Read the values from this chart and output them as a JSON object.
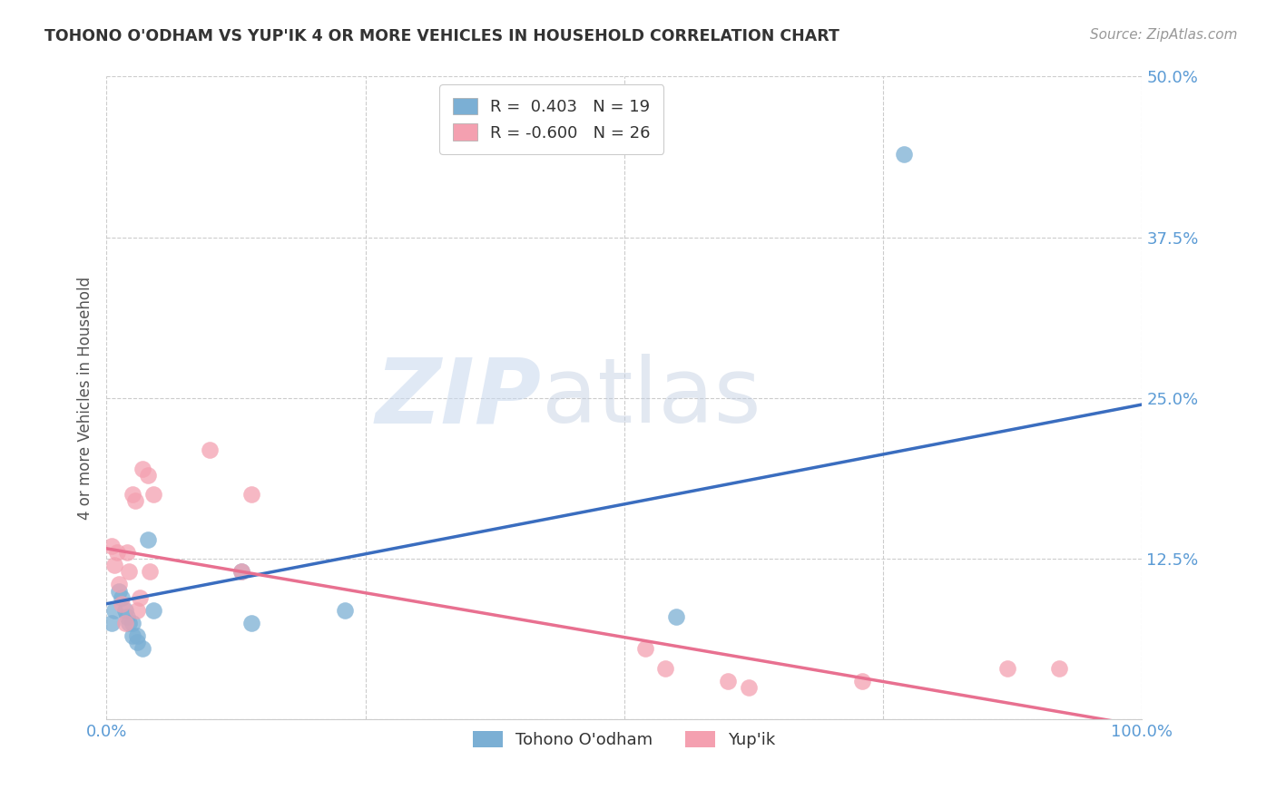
{
  "title": "TOHONO O'ODHAM VS YUP'IK 4 OR MORE VEHICLES IN HOUSEHOLD CORRELATION CHART",
  "source": "Source: ZipAtlas.com",
  "ylabel": "4 or more Vehicles in Household",
  "R1": 0.403,
  "N1": 19,
  "R2": -0.6,
  "N2": 26,
  "color1": "#7bafd4",
  "color2": "#f4a0b0",
  "line1_color": "#3a6dbf",
  "line2_color": "#e87090",
  "tohono_x": [
    0.005,
    0.008,
    0.012,
    0.015,
    0.018,
    0.02,
    0.022,
    0.025,
    0.025,
    0.03,
    0.03,
    0.035,
    0.04,
    0.045,
    0.13,
    0.14,
    0.23,
    0.55,
    0.77
  ],
  "tohono_y": [
    0.075,
    0.085,
    0.1,
    0.095,
    0.085,
    0.08,
    0.075,
    0.075,
    0.065,
    0.065,
    0.06,
    0.055,
    0.14,
    0.085,
    0.115,
    0.075,
    0.085,
    0.08,
    0.44
  ],
  "yupik_x": [
    0.005,
    0.008,
    0.01,
    0.012,
    0.015,
    0.018,
    0.02,
    0.022,
    0.025,
    0.028,
    0.03,
    0.032,
    0.035,
    0.04,
    0.042,
    0.045,
    0.1,
    0.13,
    0.14,
    0.52,
    0.54,
    0.6,
    0.62,
    0.73,
    0.87,
    0.92
  ],
  "yupik_y": [
    0.135,
    0.12,
    0.13,
    0.105,
    0.09,
    0.075,
    0.13,
    0.115,
    0.175,
    0.17,
    0.085,
    0.095,
    0.195,
    0.19,
    0.115,
    0.175,
    0.21,
    0.115,
    0.175,
    0.055,
    0.04,
    0.03,
    0.025,
    0.03,
    0.04,
    0.04
  ],
  "line1_x0": 0.0,
  "line1_y0": 0.09,
  "line1_x1": 1.0,
  "line1_y1": 0.245,
  "line2_x0": 0.0,
  "line2_y0": 0.133,
  "line2_x1": 1.0,
  "line2_y1": -0.005,
  "xlim": [
    0.0,
    1.0
  ],
  "ylim": [
    0.0,
    0.5
  ],
  "xticks": [
    0.0,
    0.25,
    0.5,
    0.75,
    1.0
  ],
  "xticklabels": [
    "0.0%",
    "",
    "",
    "",
    "100.0%"
  ],
  "yticks": [
    0.0,
    0.125,
    0.25,
    0.375,
    0.5
  ],
  "yticklabels": [
    "",
    "12.5%",
    "25.0%",
    "37.5%",
    "50.0%"
  ],
  "legend1_label": "Tohono O'odham",
  "legend2_label": "Yup'ik",
  "watermark_zip": "ZIP",
  "watermark_atlas": "atlas",
  "background_color": "#ffffff",
  "grid_color": "#cccccc",
  "tick_color": "#5b9bd5",
  "ylabel_color": "#555555",
  "title_color": "#333333",
  "source_color": "#999999"
}
